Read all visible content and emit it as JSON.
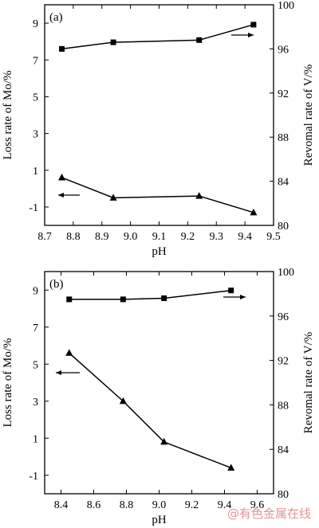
{
  "watermark": "@有色金属在线",
  "chart_data": [
    {
      "type": "line",
      "panel_label": "(a)",
      "xlabel": "pH",
      "ylabel_left": "Loss rate of Mo/%",
      "ylabel_right": "Revomal rate of V/%",
      "xlim": [
        8.7,
        9.5
      ],
      "xticks": [
        "8.7",
        "8.8",
        "8.9",
        "9.0",
        "9.1",
        "9.2",
        "9.3",
        "9.4",
        "9.5"
      ],
      "ylim_left": [
        -2,
        10
      ],
      "yticks_left": [
        "-1",
        "1",
        "3",
        "5",
        "7",
        "9"
      ],
      "ylim_right": [
        80,
        100
      ],
      "yticks_right": [
        "80",
        "84",
        "88",
        "92",
        "96",
        "100"
      ],
      "series": [
        {
          "axis": "left",
          "marker": "triangle",
          "x": [
            8.76,
            8.94,
            9.24,
            9.43
          ],
          "y": [
            0.6,
            -0.5,
            -0.4,
            -1.3
          ]
        },
        {
          "axis": "right",
          "marker": "square",
          "x": [
            8.76,
            8.94,
            9.24,
            9.43
          ],
          "y": [
            96.0,
            96.6,
            96.8,
            98.2
          ]
        }
      ]
    },
    {
      "type": "line",
      "panel_label": "(b)",
      "xlabel": "pH",
      "ylabel_left": "Loss rate of Mo/%",
      "ylabel_right": "Revomal rate of V/%",
      "xlim": [
        8.3,
        9.7
      ],
      "xticks": [
        "8.4",
        "8.6",
        "8.8",
        "9.0",
        "9.2",
        "9.4",
        "9.6"
      ],
      "ylim_left": [
        -2,
        10
      ],
      "yticks_left": [
        "-1",
        "1",
        "3",
        "5",
        "7",
        "9"
      ],
      "ylim_right": [
        80,
        100
      ],
      "yticks_right": [
        "80",
        "84",
        "88",
        "92",
        "96",
        "100"
      ],
      "series": [
        {
          "axis": "left",
          "marker": "triangle",
          "x": [
            8.45,
            8.78,
            9.03,
            9.44
          ],
          "y": [
            5.6,
            3.0,
            0.8,
            -0.6
          ]
        },
        {
          "axis": "right",
          "marker": "square",
          "x": [
            8.45,
            8.78,
            9.03,
            9.44
          ],
          "y": [
            97.5,
            97.5,
            97.6,
            98.3
          ]
        }
      ]
    }
  ]
}
